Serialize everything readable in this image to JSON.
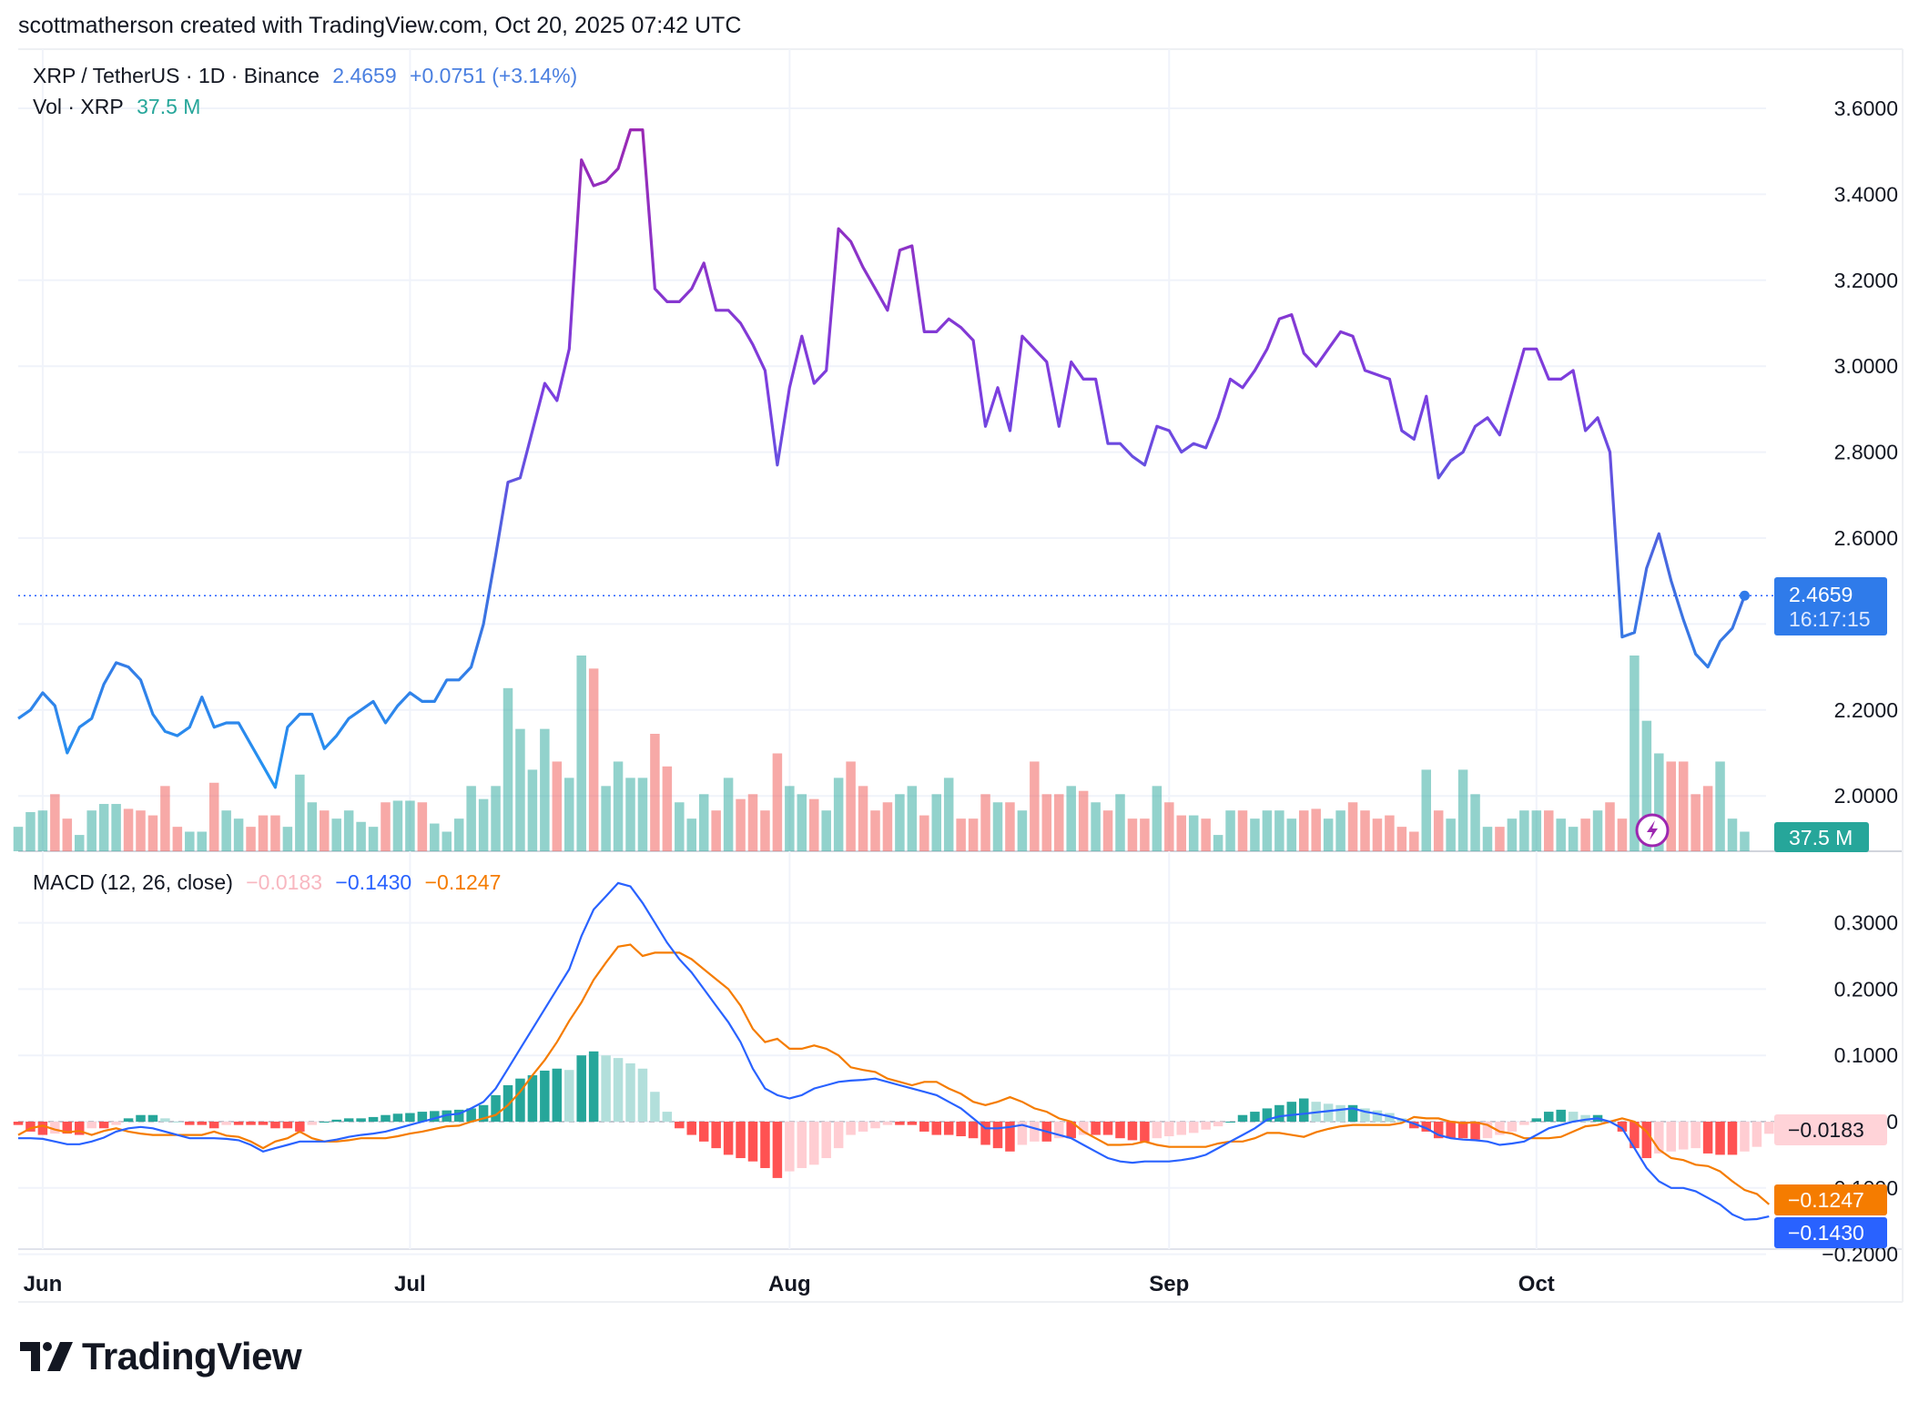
{
  "header": {
    "credit": "scottmatherson created with TradingView.com, Oct 20, 2025 07:42 UTC",
    "symbol": "XRP / TetherUS · 1D · Binance",
    "last_price": "2.4659",
    "change": "+0.0751 (+3.14%)",
    "vol_label": "Vol · XRP",
    "vol_value": "37.5 M",
    "macd_label": "MACD (12, 26, close)",
    "macd_hist": "−0.0183",
    "macd_line": "−0.1430",
    "macd_signal": "−0.1247"
  },
  "badges": {
    "price": "2.4659",
    "countdown": "16:17:15",
    "volume": "37.5 M",
    "macd_hist": "−0.0183",
    "macd_signal": "−0.1247",
    "macd_line": "−0.1430"
  },
  "brand": {
    "name": "TradingView",
    "logo_icon": "tradingview-logo-icon"
  },
  "icons": {
    "replay": "lightning-icon"
  },
  "colors": {
    "price_up": "#2196f3",
    "price_high": "#9c27b0",
    "vol_up": "#26a69a",
    "vol_down": "#ef5350",
    "macd_line": "#2962ff",
    "signal_line": "#f57c00",
    "hist_up_strong": "#26a69a",
    "hist_up_weak": "#b2dfdb",
    "hist_down_strong": "#ff5252",
    "hist_down_weak": "#ffcdd2"
  },
  "chart_data": [
    {
      "type": "line",
      "title": "XRP / TetherUS · 1D · Binance",
      "x_ticks": [
        "Jun",
        "Jul",
        "Aug",
        "Sep",
        "Oct"
      ],
      "y_ticks": [
        "3.6000",
        "3.4000",
        "3.2000",
        "3.0000",
        "2.8000",
        "2.6000",
        "2.2000",
        "2.0000"
      ],
      "ylim": [
        1.86,
        3.6
      ],
      "grid": true,
      "series": [
        {
          "name": "XRP / TetherUS",
          "start_date": "2025-05-30",
          "values": [
            2.18,
            2.2,
            2.24,
            2.21,
            2.1,
            2.16,
            2.18,
            2.26,
            2.31,
            2.3,
            2.27,
            2.19,
            2.15,
            2.14,
            2.16,
            2.23,
            2.16,
            2.17,
            2.17,
            2.12,
            2.07,
            2.02,
            2.16,
            2.19,
            2.19,
            2.11,
            2.14,
            2.18,
            2.2,
            2.22,
            2.17,
            2.21,
            2.24,
            2.22,
            2.22,
            2.27,
            2.27,
            2.3,
            2.4,
            2.56,
            2.73,
            2.74,
            2.85,
            2.96,
            2.92,
            3.04,
            3.48,
            3.42,
            3.43,
            3.46,
            3.55,
            3.55,
            3.18,
            3.15,
            3.15,
            3.18,
            3.24,
            3.13,
            3.13,
            3.1,
            3.05,
            2.99,
            2.77,
            2.95,
            3.07,
            2.96,
            2.99,
            3.32,
            3.29,
            3.23,
            3.18,
            3.13,
            3.27,
            3.28,
            3.08,
            3.08,
            3.11,
            3.09,
            3.06,
            2.86,
            2.95,
            2.85,
            3.07,
            3.04,
            3.01,
            2.86,
            3.01,
            2.97,
            2.97,
            2.82,
            2.82,
            2.79,
            2.77,
            2.86,
            2.85,
            2.8,
            2.82,
            2.81,
            2.88,
            2.97,
            2.95,
            2.99,
            3.04,
            3.11,
            3.12,
            3.03,
            3.0,
            3.04,
            3.08,
            3.07,
            2.99,
            2.98,
            2.97,
            2.85,
            2.83,
            2.93,
            2.74,
            2.78,
            2.8,
            2.86,
            2.88,
            2.84,
            2.94,
            3.04,
            3.04,
            2.97,
            2.97,
            2.99,
            2.85,
            2.88,
            2.8,
            2.37,
            2.38,
            2.53,
            2.61,
            2.5,
            2.41,
            2.33,
            2.3,
            2.36,
            2.39,
            2.4659
          ]
        }
      ]
    },
    {
      "type": "bar",
      "title": "Vol · XRP",
      "series": [
        {
          "name": "Volume",
          "start_date": "2025-05-30",
          "values": [
            15,
            24,
            25,
            35,
            20,
            10,
            25,
            29,
            29,
            26,
            25,
            22,
            40,
            15,
            12,
            12,
            42,
            25,
            20,
            15,
            22,
            22,
            15,
            47,
            30,
            25,
            20,
            25,
            18,
            15,
            30,
            31,
            31,
            30,
            17,
            12,
            20,
            40,
            32,
            40,
            100,
            75,
            50,
            75,
            55,
            45,
            120,
            112,
            40,
            55,
            45,
            45,
            72,
            52,
            30,
            20,
            35,
            25,
            45,
            32,
            35,
            25,
            60,
            40,
            35,
            32,
            25,
            45,
            55,
            40,
            25,
            30,
            35,
            40,
            22,
            35,
            45,
            20,
            20,
            35,
            30,
            30,
            25,
            55,
            35,
            35,
            40,
            37,
            30,
            25,
            35,
            20,
            20,
            40,
            30,
            22,
            22,
            20,
            10,
            25,
            25,
            20,
            25,
            25,
            20,
            25,
            26,
            20,
            25,
            30,
            25,
            20,
            22,
            15,
            12,
            50,
            25,
            20,
            50,
            35,
            15,
            15,
            20,
            25,
            25,
            25,
            20,
            15,
            20,
            25,
            30,
            20,
            120,
            80,
            60,
            55,
            55,
            35,
            40,
            55,
            20,
            12
          ]
        }
      ]
    },
    {
      "type": "bar",
      "title": "MACD (12, 26, close)",
      "y_ticks": [
        "0.3000",
        "0.2000",
        "0.1000",
        "0.0000",
        "−0.1000",
        "−0.2000"
      ],
      "ylim": [
        -0.2,
        0.35
      ],
      "series": [
        {
          "name": "Histogram",
          "values": [
            -0.005,
            -0.015,
            -0.02,
            -0.018,
            -0.018,
            -0.02,
            -0.01,
            -0.01,
            -0.005,
            0.005,
            0.01,
            0.01,
            0.005,
            0,
            -0.005,
            -0.005,
            -0.01,
            -0.005,
            -0.005,
            -0.005,
            -0.005,
            -0.01,
            -0.01,
            -0.015,
            -0.005,
            0,
            0.003,
            0.005,
            0.005,
            0.007,
            0.01,
            0.012,
            0.013,
            0.015,
            0.016,
            0.017,
            0.018,
            0.02,
            0.025,
            0.04,
            0.055,
            0.065,
            0.07,
            0.077,
            0.08,
            0.078,
            0.1,
            0.106,
            0.1,
            0.096,
            0.088,
            0.08,
            0.045,
            0.015,
            -0.01,
            -0.02,
            -0.03,
            -0.04,
            -0.05,
            -0.055,
            -0.06,
            -0.07,
            -0.085,
            -0.075,
            -0.07,
            -0.065,
            -0.055,
            -0.04,
            -0.02,
            -0.015,
            -0.01,
            -0.005,
            -0.005,
            -0.005,
            -0.015,
            -0.02,
            -0.02,
            -0.022,
            -0.025,
            -0.035,
            -0.04,
            -0.045,
            -0.035,
            -0.03,
            -0.03,
            -0.025,
            -0.025,
            -0.02,
            -0.02,
            -0.02,
            -0.025,
            -0.028,
            -0.03,
            -0.025,
            -0.022,
            -0.02,
            -0.017,
            -0.012,
            -0.007,
            0,
            0.01,
            0.015,
            0.02,
            0.025,
            0.03,
            0.035,
            0.03,
            0.027,
            0.025,
            0.025,
            0.02,
            0.017,
            0.013,
            0.005,
            -0.01,
            -0.015,
            -0.025,
            -0.025,
            -0.025,
            -0.027,
            -0.025,
            -0.02,
            -0.015,
            -0.005,
            0.005,
            0.015,
            0.018,
            0.015,
            0.01,
            0.01,
            0,
            -0.015,
            -0.04,
            -0.055,
            -0.048,
            -0.045,
            -0.042,
            -0.04,
            -0.048,
            -0.05,
            -0.05,
            -0.045,
            -0.038,
            -0.0183
          ]
        },
        {
          "name": "MACD",
          "values": [
            -0.025,
            -0.025,
            -0.026,
            -0.03,
            -0.034,
            -0.034,
            -0.03,
            -0.024,
            -0.015,
            -0.01,
            -0.008,
            -0.01,
            -0.015,
            -0.02,
            -0.025,
            -0.025,
            -0.025,
            -0.026,
            -0.028,
            -0.035,
            -0.045,
            -0.04,
            -0.035,
            -0.03,
            -0.03,
            -0.03,
            -0.027,
            -0.023,
            -0.02,
            -0.018,
            -0.015,
            -0.01,
            -0.005,
            0,
            0.005,
            0.01,
            0.012,
            0.02,
            0.03,
            0.05,
            0.08,
            0.11,
            0.14,
            0.17,
            0.2,
            0.23,
            0.28,
            0.32,
            0.34,
            0.36,
            0.355,
            0.33,
            0.3,
            0.27,
            0.245,
            0.225,
            0.2,
            0.175,
            0.15,
            0.12,
            0.08,
            0.05,
            0.04,
            0.035,
            0.04,
            0.05,
            0.055,
            0.06,
            0.062,
            0.063,
            0.065,
            0.06,
            0.055,
            0.05,
            0.045,
            0.04,
            0.03,
            0.02,
            0.005,
            -0.01,
            -0.01,
            -0.008,
            -0.005,
            -0.01,
            -0.015,
            -0.02,
            -0.025,
            -0.035,
            -0.045,
            -0.055,
            -0.06,
            -0.062,
            -0.06,
            -0.06,
            -0.06,
            -0.058,
            -0.055,
            -0.05,
            -0.04,
            -0.03,
            -0.02,
            -0.01,
            0.003,
            0.008,
            0.01,
            0.012,
            0.014,
            0.016,
            0.018,
            0.02,
            0.015,
            0.012,
            0.008,
            0.003,
            -0.003,
            -0.01,
            -0.02,
            -0.025,
            -0.027,
            -0.028,
            -0.03,
            -0.035,
            -0.033,
            -0.03,
            -0.02,
            -0.01,
            -0.005,
            0,
            0.003,
            0.005,
            0,
            -0.01,
            -0.04,
            -0.07,
            -0.09,
            -0.1,
            -0.1,
            -0.105,
            -0.115,
            -0.125,
            -0.14,
            -0.148,
            -0.147,
            -0.143
          ]
        }
      ]
    }
  ]
}
